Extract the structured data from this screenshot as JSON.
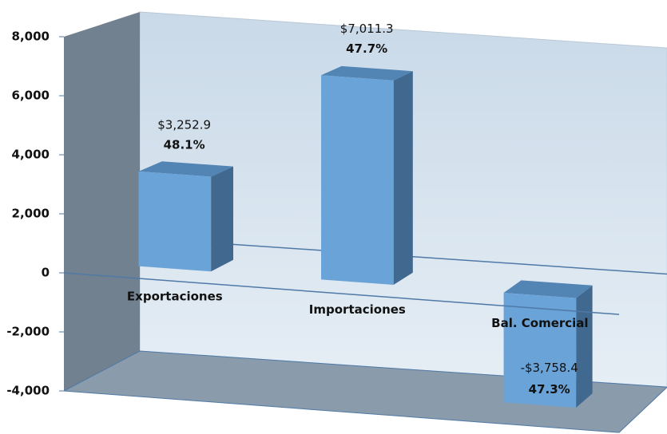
{
  "chart_data": {
    "type": "bar3d",
    "categories": [
      "Exportaciones",
      "Importaciones",
      "Bal. Comercial"
    ],
    "values": [
      3252.9,
      7011.3,
      -3758.4
    ],
    "value_labels": [
      "$3,252.9",
      "$7,011.3",
      "-$3,758.4"
    ],
    "percentage_labels": [
      "48.1%",
      "47.7%",
      "47.3%"
    ],
    "color": "#6aa3d8",
    "ylim": [
      -4000,
      8000
    ],
    "yticks": [
      {
        "value": -4000,
        "label": "-4,000"
      },
      {
        "value": -2000,
        "label": "-2,000"
      },
      0,
      {
        "value": 2000,
        "label": "2,000"
      },
      {
        "value": 4000,
        "label": "4,000"
      },
      {
        "value": 6000,
        "label": "6,000"
      },
      {
        "value": 8000,
        "label": "8,000"
      }
    ]
  }
}
